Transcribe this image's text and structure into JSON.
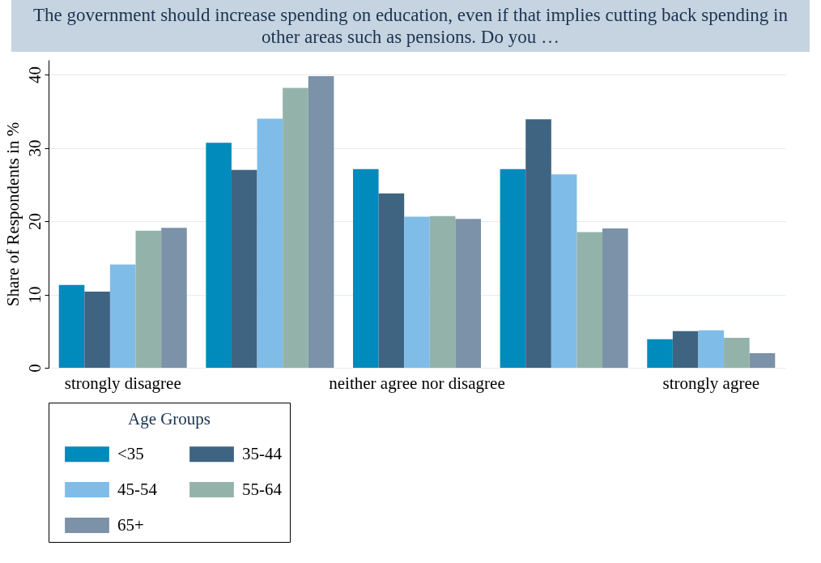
{
  "chart_data": {
    "type": "bar",
    "title": "The government should increase spending on education, even if that implies cutting back spending in other areas such as pensions. Do you …",
    "ylabel": "Share of Respondents in %",
    "legend_title": "Age Groups",
    "legend": "bottom",
    "grid": "y",
    "categories": [
      "strongly disagree",
      null,
      "neither agree nor disagree",
      null,
      "strongly agree"
    ],
    "ylim": [
      0,
      42
    ],
    "yticks": [
      0,
      10,
      20,
      30,
      40
    ],
    "series": [
      {
        "name": "<35",
        "color": "#008bbc",
        "values": [
          11.3,
          30.7,
          27.1,
          27.1,
          3.9
        ]
      },
      {
        "name": "35-44",
        "color": "#3e6482",
        "values": [
          10.4,
          27.0,
          23.8,
          33.9,
          5.0
        ]
      },
      {
        "name": "45-54",
        "color": "#7fbce8",
        "values": [
          14.1,
          34.0,
          20.6,
          26.4,
          5.1
        ]
      },
      {
        "name": "55-64",
        "color": "#93b3aa",
        "values": [
          18.7,
          38.2,
          20.7,
          18.5,
          4.1
        ]
      },
      {
        "name": "65+",
        "color": "#7b92a8",
        "values": [
          19.1,
          39.8,
          20.3,
          19.0,
          2.0
        ]
      }
    ]
  }
}
